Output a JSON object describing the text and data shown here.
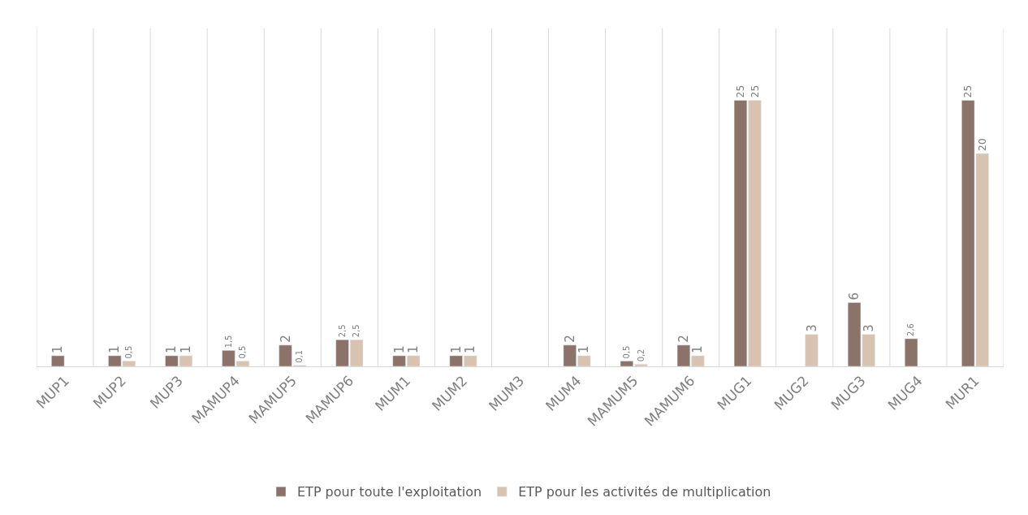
{
  "chart_data": {
    "type": "bar",
    "categories": [
      "MUP1",
      "MUP2",
      "MUP3",
      "MAMUP4",
      "MAMUP5",
      "MAMUP6",
      "MUM1",
      "MUM2",
      "MUM3",
      "MUM4",
      "MAMUM5",
      "MAMUM6",
      "MUG1",
      "MUG2",
      "MUG3",
      "MUG4",
      "MUR1"
    ],
    "series": [
      {
        "name": "ETP pour toute l'exploitation",
        "color": "#8b7369",
        "values": [
          1,
          1,
          1,
          1.5,
          2,
          2.5,
          1,
          1,
          null,
          2,
          0.5,
          2,
          25,
          null,
          6,
          2.6,
          25
        ],
        "value_labels": [
          "1",
          "1",
          "1",
          "1,5",
          "2",
          "2,5",
          "1",
          "1",
          null,
          "2",
          "0,5",
          "2",
          "25",
          null,
          "6",
          "2,6",
          "25"
        ]
      },
      {
        "name": "ETP pour les activités de multiplication",
        "color": "#d8c3b1",
        "values": [
          null,
          0.5,
          1,
          0.5,
          0.1,
          2.5,
          1,
          1,
          null,
          1,
          0.2,
          1,
          25,
          3,
          3,
          null,
          20
        ],
        "value_labels": [
          null,
          "0,5",
          "1",
          "0,5",
          "0,1",
          "2,5",
          "1",
          "1",
          null,
          "1",
          "0,2",
          "1",
          "25",
          "3",
          "3",
          null,
          "20"
        ]
      }
    ],
    "grid": "x",
    "legend": "bottom",
    "tick_labels": "x"
  }
}
